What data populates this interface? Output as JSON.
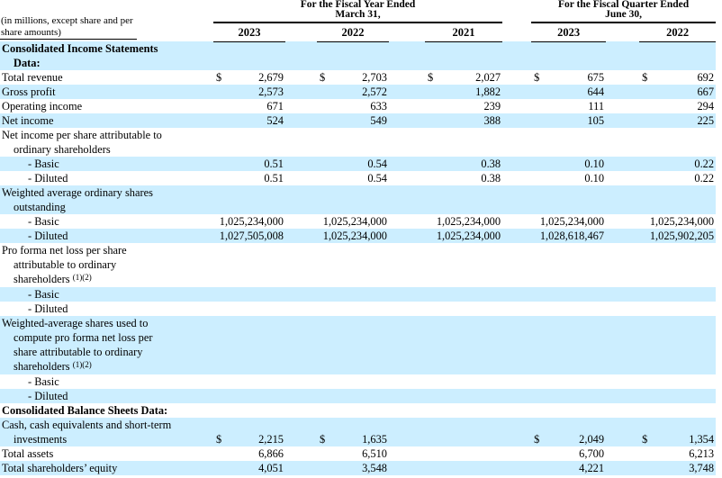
{
  "page": {
    "background": "#ffffff",
    "band_color": "#cceeff",
    "text_color": "#000000"
  },
  "header": {
    "units_note_lines": [
      "(in millions, except share and per",
      "share amounts)"
    ],
    "groups": [
      {
        "title": "For the Fiscal Year Ended",
        "subtitle": "March 31,",
        "years": [
          "2023",
          "2022",
          "2021"
        ]
      },
      {
        "title": "For the Fiscal Quarter Ended",
        "subtitle": "June 30,",
        "years": [
          "2023",
          "2022"
        ]
      }
    ]
  },
  "rows": [
    {
      "name": "section-income-statements",
      "style": "section",
      "shaded": true,
      "lines": [
        "Consolidated Income Statements",
        "Data:"
      ],
      "cells": null
    },
    {
      "name": "row-total-revenue",
      "style": "item",
      "shaded": false,
      "lines": [
        "Total revenue"
      ],
      "cells": [
        [
          "$",
          "2,679"
        ],
        [
          "$",
          "2,703"
        ],
        [
          "$",
          "2,027"
        ],
        [
          "$",
          "675"
        ],
        [
          "$",
          "692"
        ]
      ]
    },
    {
      "name": "row-gross-profit",
      "style": "item",
      "shaded": true,
      "lines": [
        "Gross profit"
      ],
      "cells": [
        [
          "",
          "2,573"
        ],
        [
          "",
          "2,572"
        ],
        [
          "",
          "1,882"
        ],
        [
          "",
          "644"
        ],
        [
          "",
          "667"
        ]
      ]
    },
    {
      "name": "row-operating-income",
      "style": "item",
      "shaded": false,
      "lines": [
        "Operating income"
      ],
      "cells": [
        [
          "",
          "671"
        ],
        [
          "",
          "633"
        ],
        [
          "",
          "239"
        ],
        [
          "",
          "111"
        ],
        [
          "",
          "294"
        ]
      ]
    },
    {
      "name": "row-net-income",
      "style": "item",
      "shaded": true,
      "lines": [
        "Net income"
      ],
      "cells": [
        [
          "",
          "524"
        ],
        [
          "",
          "549"
        ],
        [
          "",
          "388"
        ],
        [
          "",
          "105"
        ],
        [
          "",
          "225"
        ]
      ]
    },
    {
      "name": "row-net-income-per-share-header",
      "style": "item",
      "shaded": false,
      "lines": [
        "Net income per share attributable to",
        "ordinary shareholders"
      ],
      "cells": null
    },
    {
      "name": "row-nips-basic",
      "style": "dash",
      "shaded": true,
      "lines": [
        "- Basic"
      ],
      "cells": [
        [
          "",
          "0.51"
        ],
        [
          "",
          "0.54"
        ],
        [
          "",
          "0.38"
        ],
        [
          "",
          "0.10"
        ],
        [
          "",
          "0.22"
        ]
      ]
    },
    {
      "name": "row-nips-diluted",
      "style": "dash",
      "shaded": false,
      "lines": [
        "- Diluted"
      ],
      "cells": [
        [
          "",
          "0.51"
        ],
        [
          "",
          "0.54"
        ],
        [
          "",
          "0.38"
        ],
        [
          "",
          "0.10"
        ],
        [
          "",
          "0.22"
        ]
      ]
    },
    {
      "name": "row-weighted-avg-shares-header",
      "style": "item",
      "shaded": true,
      "lines": [
        "Weighted average ordinary shares",
        "outstanding"
      ],
      "cells": null
    },
    {
      "name": "row-was-basic",
      "style": "dash",
      "shaded": false,
      "lines": [
        "- Basic"
      ],
      "cells": [
        [
          "",
          "1,025,234,000"
        ],
        [
          "",
          "1,025,234,000"
        ],
        [
          "",
          "1,025,234,000"
        ],
        [
          "",
          "1,025,234,000"
        ],
        [
          "",
          "1,025,234,000"
        ]
      ]
    },
    {
      "name": "row-was-diluted",
      "style": "dash",
      "shaded": true,
      "lines": [
        "- Diluted"
      ],
      "cells": [
        [
          "",
          "1,027,505,008"
        ],
        [
          "",
          "1,025,234,000"
        ],
        [
          "",
          "1,025,234,000"
        ],
        [
          "",
          "1,028,618,467"
        ],
        [
          "",
          "1,025,902,205"
        ]
      ]
    },
    {
      "name": "row-proforma-header",
      "style": "item",
      "shaded": false,
      "sup": "(1)(2)",
      "lines": [
        "Pro forma net loss per share",
        "attributable to ordinary",
        "shareholders"
      ],
      "cells": null
    },
    {
      "name": "row-proforma-basic",
      "style": "dash",
      "shaded": true,
      "lines": [
        "- Basic"
      ],
      "cells": null
    },
    {
      "name": "row-proforma-diluted",
      "style": "dash",
      "shaded": false,
      "lines": [
        "- Diluted"
      ],
      "cells": null
    },
    {
      "name": "row-weighted-avg-proforma-header",
      "style": "item",
      "shaded": true,
      "sup": "(1)(2)",
      "lines": [
        "Weighted-average shares used to",
        "compute pro forma net loss per",
        "share attributable to ordinary",
        "shareholders"
      ],
      "cells": null
    },
    {
      "name": "row-wap-basic",
      "style": "dash",
      "shaded": false,
      "lines": [
        "- Basic"
      ],
      "cells": null
    },
    {
      "name": "row-wap-diluted",
      "style": "dash",
      "shaded": true,
      "lines": [
        "- Diluted"
      ],
      "cells": null
    },
    {
      "name": "section-balance-sheets",
      "style": "section",
      "shaded": false,
      "lines": [
        "Consolidated Balance Sheets Data:"
      ],
      "cells": null
    },
    {
      "name": "row-cash-and-investments",
      "style": "item",
      "shaded": true,
      "lines": [
        "Cash, cash equivalents and short-term",
        "investments"
      ],
      "cells": [
        [
          "$",
          "2,215"
        ],
        [
          "$",
          "1,635"
        ],
        [
          "",
          ""
        ],
        [
          "$",
          "2,049"
        ],
        [
          "$",
          "1,354"
        ]
      ]
    },
    {
      "name": "row-total-assets",
      "style": "item",
      "shaded": false,
      "lines": [
        "Total assets"
      ],
      "cells": [
        [
          "",
          "6,866"
        ],
        [
          "",
          "6,510"
        ],
        [
          "",
          ""
        ],
        [
          "",
          "6,700"
        ],
        [
          "",
          "6,213"
        ]
      ]
    },
    {
      "name": "row-total-shareholders-equity",
      "style": "item",
      "shaded": true,
      "lines": [
        "Total shareholders’ equity"
      ],
      "cells": [
        [
          "",
          "4,051"
        ],
        [
          "",
          "3,548"
        ],
        [
          "",
          ""
        ],
        [
          "",
          "4,221"
        ],
        [
          "",
          "3,748"
        ]
      ]
    }
  ]
}
